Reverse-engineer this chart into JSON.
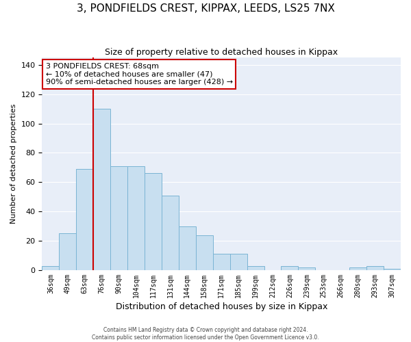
{
  "title": "3, PONDFIELDS CREST, KIPPAX, LEEDS, LS25 7NX",
  "subtitle": "Size of property relative to detached houses in Kippax",
  "xlabel": "Distribution of detached houses by size in Kippax",
  "ylabel": "Number of detached properties",
  "bar_color": "#c8dff0",
  "bar_edge_color": "#7ab4d4",
  "background_color": "#e8eef8",
  "grid_color": "#ffffff",
  "categories": [
    "36sqm",
    "49sqm",
    "63sqm",
    "76sqm",
    "90sqm",
    "104sqm",
    "117sqm",
    "131sqm",
    "144sqm",
    "158sqm",
    "171sqm",
    "185sqm",
    "199sqm",
    "212sqm",
    "226sqm",
    "239sqm",
    "253sqm",
    "266sqm",
    "280sqm",
    "293sqm",
    "307sqm"
  ],
  "values": [
    3,
    25,
    69,
    110,
    71,
    71,
    66,
    51,
    30,
    24,
    11,
    11,
    3,
    0,
    3,
    2,
    0,
    0,
    2,
    3,
    1
  ],
  "vline_index": 3,
  "vline_color": "#cc0000",
  "ylim": [
    0,
    145
  ],
  "yticks": [
    0,
    20,
    40,
    60,
    80,
    100,
    120,
    140
  ],
  "annotation_title": "3 PONDFIELDS CREST: 68sqm",
  "annotation_line1": "← 10% of detached houses are smaller (47)",
  "annotation_line2": "90% of semi-detached houses are larger (428) →",
  "footer_line1": "Contains HM Land Registry data © Crown copyright and database right 2024.",
  "footer_line2": "Contains public sector information licensed under the Open Government Licence v3.0."
}
